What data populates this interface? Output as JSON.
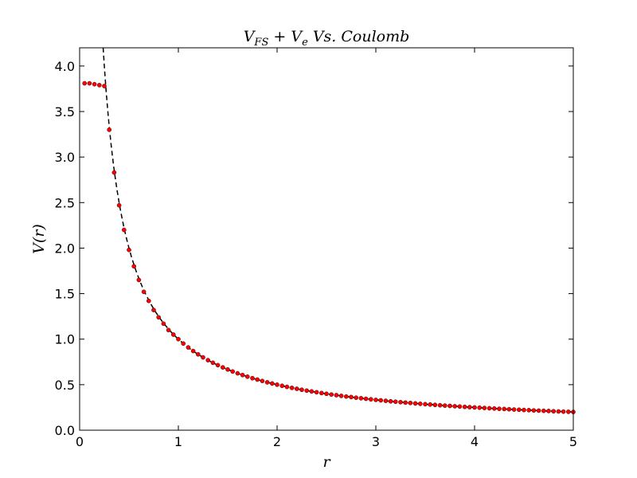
{
  "chart_data": {
    "type": "scatter",
    "title": "V_{FS}+V_e Vs. Coulomb",
    "title_parts": {
      "main1": "V",
      "sub1": "FS",
      "plus": " + ",
      "main2": "V",
      "sub2": "e",
      "rest": " Vs.  Coulomb"
    },
    "xlabel": "r",
    "ylabel": "V(r)",
    "xlim": [
      0,
      5
    ],
    "ylim": [
      0,
      4.2
    ],
    "xticks": [
      0,
      1,
      2,
      3,
      4,
      5
    ],
    "xtick_labels": [
      "0",
      "1",
      "2",
      "3",
      "4",
      "5"
    ],
    "yticks": [
      0.0,
      0.5,
      1.0,
      1.5,
      2.0,
      2.5,
      3.0,
      3.5,
      4.0
    ],
    "ytick_labels": [
      "0.0",
      "0.5",
      "1.0",
      "1.5",
      "2.0",
      "2.5",
      "3.0",
      "3.5",
      "4.0"
    ],
    "grid": false,
    "legend": "none",
    "colors": {
      "points": "#ff0000",
      "point_edge": "#000000",
      "curve": "#000000"
    },
    "series": [
      {
        "kind": "points",
        "marker": "circle",
        "x": [
          0.05,
          0.1,
          0.15,
          0.2,
          0.25,
          0.3,
          0.35,
          0.4,
          0.45,
          0.5,
          0.55,
          0.6,
          0.65,
          0.7,
          0.75,
          0.8,
          0.85,
          0.9,
          0.95,
          1.0,
          1.05,
          1.1,
          1.15,
          1.2,
          1.25,
          1.3,
          1.35,
          1.4,
          1.45,
          1.5,
          1.55,
          1.6,
          1.65,
          1.7,
          1.75,
          1.8,
          1.85,
          1.9,
          1.95,
          2.0,
          2.05,
          2.1,
          2.15,
          2.2,
          2.25,
          2.3,
          2.35,
          2.4,
          2.45,
          2.5,
          2.55,
          2.6,
          2.65,
          2.7,
          2.75,
          2.8,
          2.85,
          2.9,
          2.95,
          3.0,
          3.05,
          3.1,
          3.15,
          3.2,
          3.25,
          3.3,
          3.35,
          3.4,
          3.45,
          3.5,
          3.55,
          3.6,
          3.65,
          3.7,
          3.75,
          3.8,
          3.85,
          3.9,
          3.95,
          4.0,
          4.05,
          4.1,
          4.15,
          4.2,
          4.25,
          4.3,
          4.35,
          4.4,
          4.45,
          4.5,
          4.55,
          4.6,
          4.65,
          4.7,
          4.75,
          4.8,
          4.85,
          4.9,
          4.95,
          5.0
        ],
        "y": [
          3.81,
          3.81,
          3.8,
          3.79,
          3.78,
          3.3,
          2.83,
          2.47,
          2.2,
          1.98,
          1.8,
          1.65,
          1.52,
          1.42,
          1.32,
          1.24,
          1.17,
          1.1,
          1.05,
          1.0,
          0.952,
          0.909,
          0.87,
          0.833,
          0.8,
          0.769,
          0.741,
          0.714,
          0.69,
          0.667,
          0.645,
          0.625,
          0.606,
          0.588,
          0.571,
          0.556,
          0.541,
          0.526,
          0.513,
          0.5,
          0.488,
          0.476,
          0.465,
          0.455,
          0.444,
          0.435,
          0.426,
          0.417,
          0.408,
          0.4,
          0.392,
          0.385,
          0.377,
          0.37,
          0.364,
          0.357,
          0.351,
          0.345,
          0.339,
          0.333,
          0.328,
          0.323,
          0.317,
          0.313,
          0.308,
          0.303,
          0.299,
          0.294,
          0.29,
          0.286,
          0.282,
          0.278,
          0.274,
          0.27,
          0.267,
          0.263,
          0.26,
          0.256,
          0.253,
          0.25,
          0.247,
          0.244,
          0.241,
          0.238,
          0.235,
          0.233,
          0.23,
          0.227,
          0.225,
          0.222,
          0.22,
          0.217,
          0.215,
          0.213,
          0.211,
          0.208,
          0.206,
          0.204,
          0.202,
          0.2
        ]
      },
      {
        "kind": "curve",
        "style": "dashed",
        "function": "1/r",
        "x_range": [
          0.238,
          5.0
        ]
      }
    ]
  }
}
